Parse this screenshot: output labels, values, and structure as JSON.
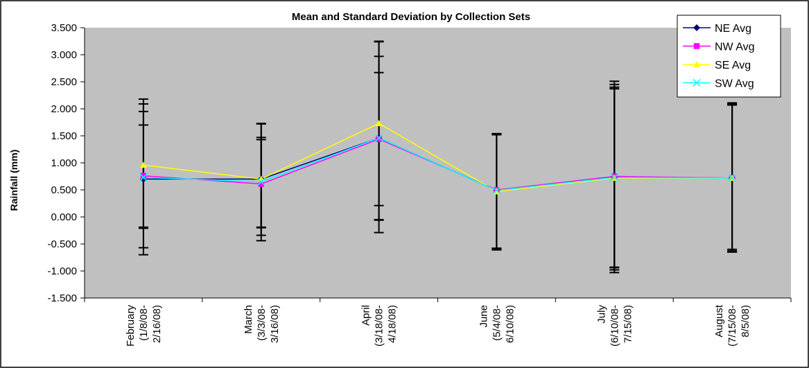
{
  "chart_data": {
    "type": "line",
    "title": "Mean and Standard Deviation by Collection Sets",
    "xlabel": "",
    "ylabel": "Rainfall (mm)",
    "ylim": [
      -1.5,
      3.5
    ],
    "ytick_step": 0.5,
    "yticks": [
      "3.500",
      "3.000",
      "2.500",
      "2.000",
      "1.500",
      "1.000",
      "0.500",
      "0.000",
      "-0.500",
      "-1.000",
      "-1.500"
    ],
    "categories": [
      [
        "February",
        "(1/8/08-",
        "2/16/08)"
      ],
      [
        "March",
        "(3/3/08-",
        "3/16/08)"
      ],
      [
        "April",
        "(3/18/08-",
        "4/18/08)"
      ],
      [
        "June",
        "(5/4/08-",
        "6/10/08)"
      ],
      [
        "July",
        "(6/10/08-",
        "7/15/08)"
      ],
      [
        "August",
        "(7/15/08-",
        "8/5/08)"
      ]
    ],
    "grid": false,
    "legend_position": "top-right",
    "plot_background": "#c0c0c0",
    "series": [
      {
        "name": "NE Avg",
        "color": "#000080",
        "marker": "diamond",
        "values": [
          0.7,
          0.7,
          1.46,
          0.49,
          0.74,
          0.72
        ],
        "error_low": [
          -0.19,
          -0.19,
          -0.05,
          -0.58,
          -0.93,
          -0.6
        ],
        "error_high": [
          1.7,
          1.73,
          2.97,
          1.54,
          2.4,
          2.07
        ]
      },
      {
        "name": "NW Avg",
        "color": "#ff00ff",
        "marker": "square",
        "values": [
          0.76,
          0.61,
          1.44,
          0.5,
          0.75,
          0.72
        ],
        "error_low": [
          -0.57,
          -0.2,
          0.21,
          -0.61,
          -0.94,
          -0.63
        ],
        "error_high": [
          2.09,
          1.43,
          2.67,
          1.52,
          2.45,
          2.09
        ]
      },
      {
        "name": "SE Avg",
        "color": "#ffff00",
        "marker": "triangle",
        "values": [
          0.96,
          0.7,
          1.73,
          0.47,
          0.72,
          0.72
        ],
        "error_low": [
          -0.7,
          -0.34,
          -0.29,
          -0.58,
          -1.03,
          -0.65
        ],
        "error_high": [
          2.18,
          1.72,
          3.25,
          1.53,
          2.51,
          2.11
        ]
      },
      {
        "name": "SW Avg",
        "color": "#00ffff",
        "marker": "x",
        "values": [
          0.73,
          0.65,
          1.46,
          0.49,
          0.73,
          0.72
        ],
        "error_low": [
          -0.21,
          -0.44,
          -0.06,
          -0.6,
          -0.98,
          -0.64
        ],
        "error_high": [
          1.95,
          1.47,
          3.24,
          1.54,
          2.37,
          2.08
        ]
      }
    ]
  }
}
